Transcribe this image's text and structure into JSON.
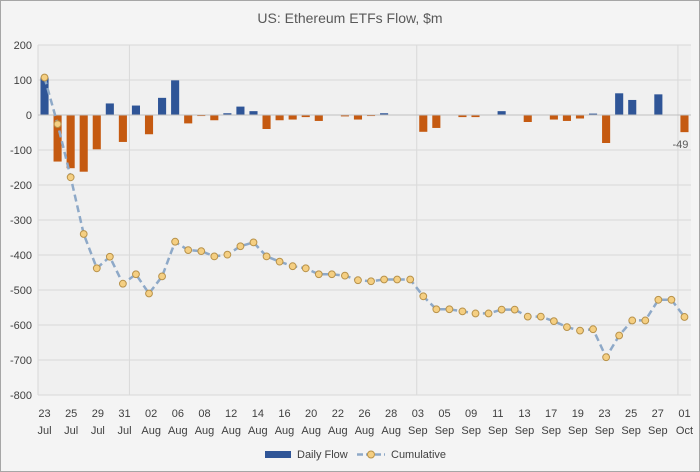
{
  "chart_data": {
    "type": "bar",
    "title": "US: Ethereum ETFs Flow, $m",
    "xlabel": "",
    "ylabel": "",
    "ylim": [
      -800,
      200
    ],
    "yticks": [
      200,
      100,
      0,
      -100,
      -200,
      -300,
      -400,
      -500,
      -600,
      -700,
      -800
    ],
    "grid": true,
    "legend_position": "bottom",
    "x_tick_labels": [
      {
        "day": "23",
        "month": "Jul"
      },
      {
        "day": "25",
        "month": "Jul"
      },
      {
        "day": "29",
        "month": "Jul"
      },
      {
        "day": "31",
        "month": "Jul"
      },
      {
        "day": "02",
        "month": "Aug"
      },
      {
        "day": "06",
        "month": "Aug"
      },
      {
        "day": "08",
        "month": "Aug"
      },
      {
        "day": "12",
        "month": "Aug"
      },
      {
        "day": "14",
        "month": "Aug"
      },
      {
        "day": "16",
        "month": "Aug"
      },
      {
        "day": "20",
        "month": "Aug"
      },
      {
        "day": "22",
        "month": "Aug"
      },
      {
        "day": "26",
        "month": "Aug"
      },
      {
        "day": "28",
        "month": "Aug"
      },
      {
        "day": "03",
        "month": "Sep"
      },
      {
        "day": "05",
        "month": "Sep"
      },
      {
        "day": "09",
        "month": "Sep"
      },
      {
        "day": "11",
        "month": "Sep"
      },
      {
        "day": "13",
        "month": "Sep"
      },
      {
        "day": "17",
        "month": "Sep"
      },
      {
        "day": "19",
        "month": "Sep"
      },
      {
        "day": "23",
        "month": "Sep"
      },
      {
        "day": "25",
        "month": "Sep"
      },
      {
        "day": "27",
        "month": "Sep"
      },
      {
        "day": "01",
        "month": "Oct"
      }
    ],
    "categories": [
      "23 Jul",
      "24 Jul",
      "25 Jul",
      "26 Jul",
      "29 Jul",
      "30 Jul",
      "31 Jul",
      "01 Aug",
      "02 Aug",
      "05 Aug",
      "06 Aug",
      "07 Aug",
      "08 Aug",
      "09 Aug",
      "12 Aug",
      "13 Aug",
      "14 Aug",
      "15 Aug",
      "16 Aug",
      "19 Aug",
      "20 Aug",
      "21 Aug",
      "22 Aug",
      "23 Aug",
      "26 Aug",
      "27 Aug",
      "28 Aug",
      "29 Aug",
      "30 Aug",
      "03 Sep",
      "04 Sep",
      "05 Sep",
      "06 Sep",
      "09 Sep",
      "10 Sep",
      "11 Sep",
      "12 Sep",
      "13 Sep",
      "16 Sep",
      "17 Sep",
      "18 Sep",
      "19 Sep",
      "20 Sep",
      "23 Sep",
      "24 Sep",
      "25 Sep",
      "26 Sep",
      "27 Sep",
      "30 Sep",
      "01 Oct"
    ],
    "series": [
      {
        "name": "Daily Flow",
        "kind": "bar",
        "color_positive": "#2f5597",
        "color_negative": "#c55a11",
        "values": [
          107,
          -133,
          -152,
          -162,
          -98,
          33,
          -77,
          27,
          -55,
          49,
          99,
          -24,
          -3,
          -15,
          5,
          24,
          11,
          -40,
          -15,
          -13,
          -6,
          -17,
          0,
          -4,
          -13,
          -3,
          5,
          0,
          0,
          -48,
          -37,
          0,
          -6,
          -6,
          0,
          11,
          0,
          -20,
          0,
          -13,
          -17,
          -10,
          4,
          -80,
          62,
          43,
          0,
          59,
          0,
          -49
        ]
      },
      {
        "name": "Cumulative",
        "kind": "line",
        "line_color": "#8ea9c8",
        "marker_color": "#f5cf82",
        "marker_edge": "#b8924a",
        "values": [
          107,
          -26,
          -178,
          -340,
          -438,
          -405,
          -482,
          -455,
          -510,
          -461,
          -362,
          -386,
          -389,
          -404,
          -399,
          -375,
          -364,
          -404,
          -419,
          -432,
          -438,
          -455,
          -455,
          -459,
          -472,
          -475,
          -470,
          -470,
          -470,
          -518,
          -555,
          -555,
          -561,
          -567,
          -567,
          -556,
          -556,
          -576,
          -576,
          -589,
          -606,
          -616,
          -612,
          -692,
          -630,
          -587,
          -587,
          -528,
          -528,
          -577
        ]
      }
    ],
    "annotations": [
      {
        "category": "01 Oct",
        "text": "-49"
      }
    ]
  }
}
